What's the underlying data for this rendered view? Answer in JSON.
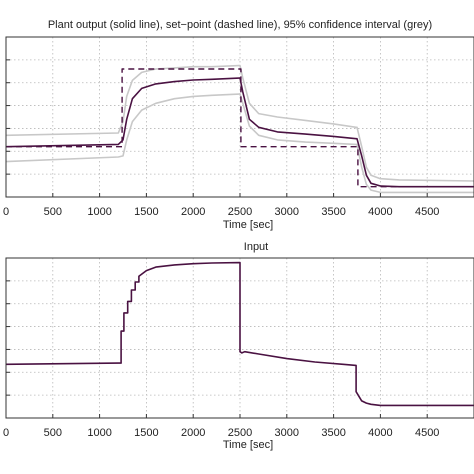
{
  "chart_data": [
    {
      "type": "line",
      "title": "Plant output (solid line), set−point (dashed line), 95% confidence interval (grey)",
      "xlabel": "Time [sec]",
      "ylabel": "",
      "xlim": [
        0,
        5000
      ],
      "ylim": [
        0,
        7
      ],
      "xticks": [
        0,
        500,
        1000,
        1500,
        2000,
        2500,
        3000,
        3500,
        4000,
        4500
      ],
      "xticklabels": [
        "0",
        "500",
        "1000",
        "1500",
        "2000",
        "2500",
        "3000",
        "3500",
        "4000",
        "4500"
      ],
      "yticks": [
        0,
        1,
        2,
        3,
        4,
        5,
        6,
        7
      ],
      "grid": true,
      "colors": {
        "solid": "#4a1242",
        "setpoint": "#4a1242",
        "confidence": "#c8c8c8"
      },
      "series": [
        {
          "role": "solid",
          "style": "solid",
          "x": [
            0,
            1200,
            1250,
            1290,
            1350,
            1450,
            1600,
            1800,
            2000,
            2200,
            2490,
            2500,
            2530,
            2600,
            2700,
            2900,
            3200,
            3500,
            3740,
            3750,
            3800,
            3850,
            3900,
            4000,
            4200,
            5000
          ],
          "y": [
            2.2,
            2.3,
            2.5,
            3.4,
            4.3,
            4.75,
            4.95,
            5.05,
            5.12,
            5.15,
            5.2,
            5.2,
            4.6,
            3.4,
            3.05,
            2.85,
            2.75,
            2.65,
            2.55,
            2.55,
            1.8,
            0.95,
            0.6,
            0.48,
            0.45,
            0.45
          ]
        },
        {
          "role": "setpoint",
          "style": "dashed",
          "x": [
            0,
            1240,
            1240,
            2510,
            2510,
            3760,
            3760,
            5000
          ],
          "y": [
            2.2,
            2.2,
            5.6,
            5.6,
            2.2,
            2.2,
            0.45,
            0.45
          ]
        },
        {
          "role": "upper-bound",
          "style": "solid",
          "x": [
            0,
            1200,
            1250,
            1290,
            1350,
            1450,
            1600,
            1800,
            2000,
            2200,
            2490,
            2500,
            2530,
            2600,
            2700,
            2900,
            3200,
            3500,
            3740,
            3750,
            3800,
            3850,
            3900,
            4000,
            4200,
            5000
          ],
          "y": [
            2.7,
            2.8,
            3.3,
            4.4,
            5.1,
            5.45,
            5.6,
            5.65,
            5.7,
            5.7,
            5.75,
            5.75,
            5.2,
            4.1,
            3.65,
            3.5,
            3.35,
            3.2,
            3.05,
            3.05,
            2.2,
            1.3,
            0.95,
            0.8,
            0.75,
            0.7
          ]
        },
        {
          "role": "lower-bound",
          "style": "solid",
          "x": [
            0,
            1200,
            1250,
            1290,
            1350,
            1450,
            1600,
            1800,
            2000,
            2200,
            2490,
            2500,
            2530,
            2600,
            2700,
            2900,
            3200,
            3500,
            3740,
            3750,
            3800,
            3850,
            3900,
            4000,
            4200,
            5000
          ],
          "y": [
            1.55,
            1.75,
            1.8,
            2.5,
            3.3,
            3.8,
            4.1,
            4.3,
            4.4,
            4.45,
            4.5,
            4.5,
            4.1,
            3.1,
            2.7,
            2.5,
            2.4,
            2.35,
            2.3,
            2.3,
            1.3,
            0.55,
            0.3,
            0.2,
            0.2,
            0.2
          ]
        }
      ]
    },
    {
      "type": "line",
      "title": "Input",
      "xlabel": "Time [sec]",
      "ylabel": "",
      "xlim": [
        0,
        5000
      ],
      "ylim": [
        0,
        7
      ],
      "xticks": [
        0,
        500,
        1000,
        1500,
        2000,
        2500,
        3000,
        3500,
        4000,
        4500
      ],
      "xticklabels": [
        "0",
        "500",
        "1000",
        "1500",
        "2000",
        "2500",
        "3000",
        "3500",
        "4000",
        "4500"
      ],
      "yticks": [
        0,
        1,
        2,
        3,
        4,
        5,
        6,
        7
      ],
      "grid": true,
      "colors": {
        "solid": "#4a1242"
      },
      "series": [
        {
          "role": "solid",
          "style": "solid",
          "x": [
            0,
            1200,
            1230,
            1230,
            1260,
            1260,
            1300,
            1300,
            1340,
            1340,
            1380,
            1380,
            1420,
            1420,
            1500,
            1600,
            1800,
            2000,
            2200,
            2500,
            2500,
            2520,
            2550,
            2700,
            3000,
            3300,
            3600,
            3740,
            3740,
            3800,
            3850,
            3900,
            4000,
            4200,
            5000
          ],
          "y": [
            2.35,
            2.4,
            2.4,
            3.8,
            3.8,
            4.6,
            4.6,
            5.1,
            5.1,
            5.6,
            5.6,
            5.95,
            5.95,
            6.2,
            6.45,
            6.6,
            6.7,
            6.75,
            6.78,
            6.8,
            2.9,
            2.85,
            2.9,
            2.8,
            2.6,
            2.45,
            2.35,
            2.3,
            1.15,
            0.75,
            0.65,
            0.6,
            0.55,
            0.55,
            0.55
          ]
        }
      ]
    }
  ]
}
